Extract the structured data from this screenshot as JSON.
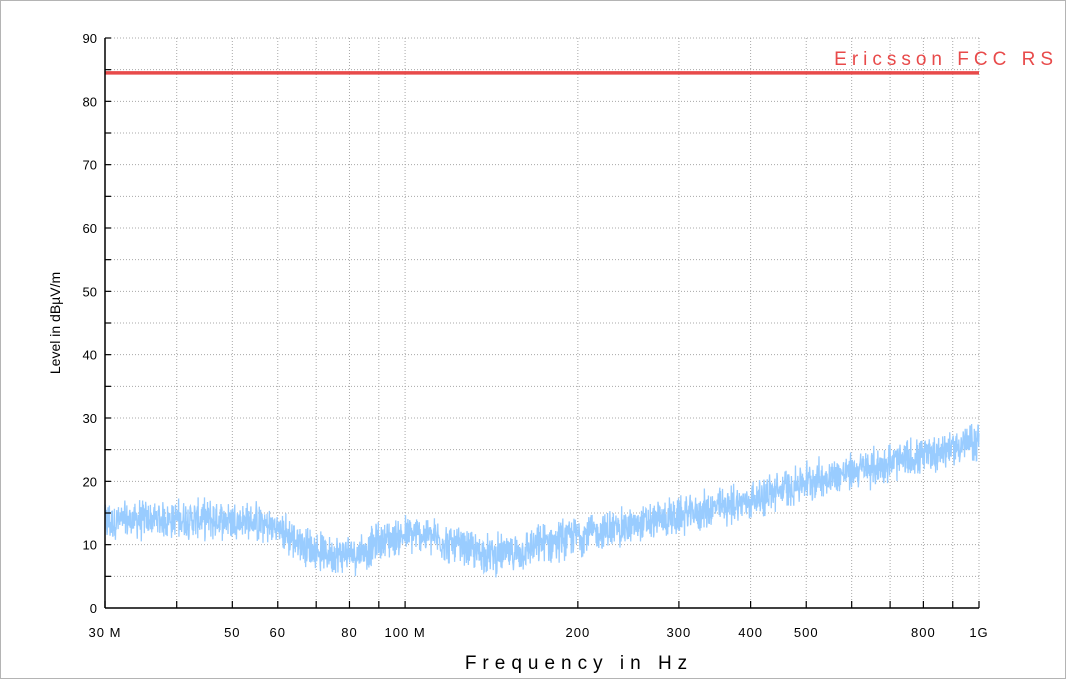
{
  "chart_data": {
    "type": "line",
    "title": "",
    "xlabel": "Frequency in Hz",
    "ylabel": "Level in dBµV/m",
    "x_scale": "log",
    "xlim": [
      30000000,
      1000000000
    ],
    "ylim": [
      0,
      90
    ],
    "grid": true,
    "x_ticks": [
      {
        "value": 30000000,
        "label": "30 M"
      },
      {
        "value": 50000000,
        "label": "50"
      },
      {
        "value": 60000000,
        "label": "60"
      },
      {
        "value": 80000000,
        "label": "80"
      },
      {
        "value": 100000000,
        "label": "100 M"
      },
      {
        "value": 200000000,
        "label": "200"
      },
      {
        "value": 300000000,
        "label": "300"
      },
      {
        "value": 400000000,
        "label": "400"
      },
      {
        "value": 500000000,
        "label": "500"
      },
      {
        "value": 800000000,
        "label": "800"
      },
      {
        "value": 1000000000,
        "label": "1G"
      }
    ],
    "y_ticks": [
      {
        "value": 0,
        "label": "0"
      },
      {
        "value": 10,
        "label": "10"
      },
      {
        "value": 20,
        "label": "20"
      },
      {
        "value": 30,
        "label": "30"
      },
      {
        "value": 40,
        "label": "40"
      },
      {
        "value": 50,
        "label": "50"
      },
      {
        "value": 60,
        "label": "60"
      },
      {
        "value": 70,
        "label": "70"
      },
      {
        "value": 80,
        "label": "80"
      },
      {
        "value": 90,
        "label": "90"
      }
    ],
    "limit_line": {
      "label": "Ericsson FCC RS",
      "value": 84.5,
      "color": "#e84a4a"
    },
    "series": [
      {
        "color": "#99ccff",
        "noise_amplitude": 2.5,
        "points": [
          [
            30000000,
            13.5
          ],
          [
            35000000,
            14.0
          ],
          [
            40000000,
            14.0
          ],
          [
            45000000,
            14.0
          ],
          [
            50000000,
            14.0
          ],
          [
            55000000,
            13.5
          ],
          [
            60000000,
            12.5
          ],
          [
            65000000,
            10.5
          ],
          [
            70000000,
            9.0
          ],
          [
            75000000,
            8.5
          ],
          [
            80000000,
            8.5
          ],
          [
            85000000,
            9.0
          ],
          [
            90000000,
            10.5
          ],
          [
            100000000,
            11.5
          ],
          [
            110000000,
            11.5
          ],
          [
            120000000,
            10.0
          ],
          [
            130000000,
            9.0
          ],
          [
            140000000,
            8.5
          ],
          [
            150000000,
            8.5
          ],
          [
            160000000,
            9.0
          ],
          [
            180000000,
            10.5
          ],
          [
            200000000,
            11.5
          ],
          [
            250000000,
            13.0
          ],
          [
            300000000,
            14.5
          ],
          [
            400000000,
            17.0
          ],
          [
            500000000,
            20.0
          ],
          [
            600000000,
            21.5
          ],
          [
            800000000,
            24.0
          ],
          [
            1000000000,
            26.5
          ]
        ]
      }
    ]
  }
}
